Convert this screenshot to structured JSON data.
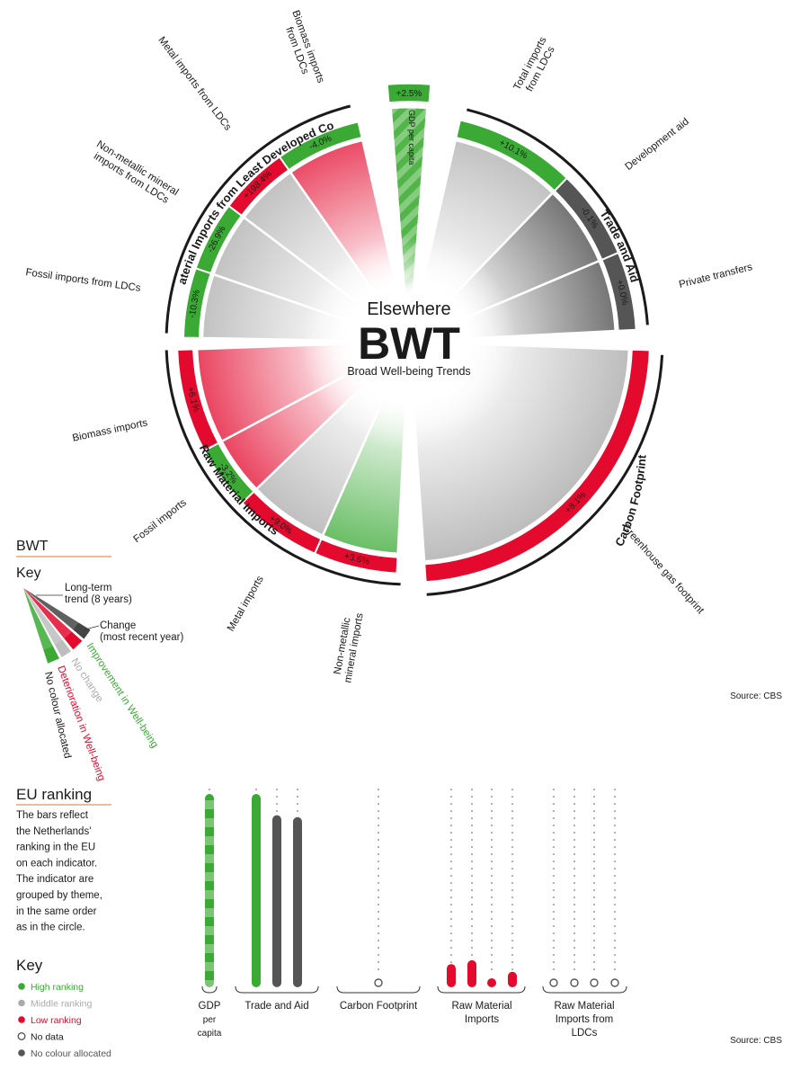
{
  "colors": {
    "green": "#3aaa35",
    "red": "#e30a2e",
    "grey": "#bdbdbd",
    "dark": "#555555"
  },
  "center": {
    "top": "Elsewhere",
    "big": "BWT",
    "sub": "Broad Well-being Trends"
  },
  "gdp": {
    "change": "+2.5%",
    "label": "GDP per capita"
  },
  "themes": {
    "trade": "Trade and Aid",
    "ldc": "Raw Material Imports from Least Developed Countries",
    "raw": "Raw Material Imports",
    "carbon": "Carbon Footprint"
  },
  "indicators": {
    "total_imports_ldc": {
      "label": "Total imports from LDCs",
      "change": "+10.1%"
    },
    "development_aid": {
      "label": "Development aid",
      "change": "-0.1%"
    },
    "private_transfers": {
      "label": "Private transfers",
      "change": "+0.0%"
    },
    "greenhouse": {
      "label": "Greenhouse gas footprint",
      "change": "+8.1%"
    },
    "nonmetallic": {
      "label": "Non-metallic mineral imports",
      "change": "+3.6%"
    },
    "metal": {
      "label": "Metal imports",
      "change": "+9.0%"
    },
    "fossil": {
      "label": "Fossil imports",
      "change": "-3.2%"
    },
    "biomass": {
      "label": "Biomass imports",
      "change": "+6.1%"
    },
    "fossil_ldc": {
      "label": "Fossil imports from LDCs",
      "change": "-10.3%"
    },
    "nonmetallic_ldc": {
      "label": "Non-metallic mineral imports from LDCs",
      "change": "-26.9%"
    },
    "metal_ldc": {
      "label": "Metal imports from LDCs",
      "change": "+198.4%"
    },
    "biomass_ldc": {
      "label": "Biomass imports from LDCs",
      "change": "-4.0%"
    }
  },
  "bwt_key": {
    "title": "BWT",
    "subtitle": "Key",
    "longterm": "Long-term trend (8 years)",
    "change": "Change (most recent year)",
    "improvement": "Improvement in Well-being",
    "nochange": "No change",
    "deterioration": "Deterioration in Well-being",
    "nocolour": "No colour allocated"
  },
  "source": "Source: CBS",
  "eu_ranking": {
    "title": "EU ranking",
    "description": "The bars reflect the Netherlands' ranking in the EU on each indicator. The indicator are grouped by theme, in the same order as in the circle.",
    "key_title": "Key",
    "key": [
      {
        "label": "High ranking",
        "color": "#3aaa35"
      },
      {
        "label": "Middle ranking",
        "color": "#aaaaaa"
      },
      {
        "label": "Low ranking",
        "color": "#e30a2e"
      },
      {
        "label": "No data",
        "color": "none"
      },
      {
        "label": "No colour allocated",
        "color": "#555555"
      }
    ]
  },
  "chart_data": [
    {
      "type": "radial-bar",
      "title": "Elsewhere BWT",
      "indicators": [
        {
          "theme": "GDP per capita",
          "name": "GDP per capita",
          "change": "+2.5%",
          "trend": "improvement"
        },
        {
          "theme": "Trade and Aid",
          "name": "Total imports from LDCs",
          "change": "+10.1%",
          "trend": "no change",
          "change_color": "improvement"
        },
        {
          "theme": "Trade and Aid",
          "name": "Development aid",
          "change": "-0.1%",
          "trend": "no colour allocated"
        },
        {
          "theme": "Trade and Aid",
          "name": "Private transfers",
          "change": "+0.0%",
          "trend": "no colour allocated"
        },
        {
          "theme": "Carbon Footprint",
          "name": "Greenhouse gas footprint",
          "change": "+8.1%",
          "trend": "no change",
          "change_color": "deterioration"
        },
        {
          "theme": "Raw Material Imports",
          "name": "Non-metallic mineral imports",
          "change": "+3.6%",
          "trend": "improvement",
          "change_color": "deterioration"
        },
        {
          "theme": "Raw Material Imports",
          "name": "Metal imports",
          "change": "+9.0%",
          "trend": "no change",
          "change_color": "deterioration"
        },
        {
          "theme": "Raw Material Imports",
          "name": "Fossil imports",
          "change": "-3.2%",
          "trend": "deterioration",
          "change_color": "improvement"
        },
        {
          "theme": "Raw Material Imports",
          "name": "Biomass imports",
          "change": "+6.1%",
          "trend": "deterioration",
          "change_color": "deterioration"
        },
        {
          "theme": "Raw Material Imports from LDCs",
          "name": "Fossil imports from LDCs",
          "change": "-10.3%",
          "trend": "no change",
          "change_color": "improvement"
        },
        {
          "theme": "Raw Material Imports from LDCs",
          "name": "Non-metallic mineral imports from LDCs",
          "change": "-26.9%",
          "trend": "no change",
          "change_color": "improvement"
        },
        {
          "theme": "Raw Material Imports from LDCs",
          "name": "Metal imports from LDCs",
          "change": "+198.4%",
          "trend": "no change",
          "change_color": "deterioration"
        },
        {
          "theme": "Raw Material Imports from LDCs",
          "name": "Biomass imports from LDCs",
          "change": "-4.0%",
          "trend": "deterioration",
          "change_color": "improvement"
        }
      ]
    },
    {
      "type": "bar",
      "title": "EU ranking",
      "groups": [
        {
          "name": "GDP per capita",
          "bars": [
            {
              "ranking": "high",
              "level": 1.0
            }
          ]
        },
        {
          "name": "Trade and Aid",
          "bars": [
            {
              "ranking": "high",
              "level": 1.0
            },
            {
              "ranking": "no colour allocated",
              "level": 0.89
            },
            {
              "ranking": "no colour allocated",
              "level": 0.88
            }
          ]
        },
        {
          "name": "Carbon Footprint",
          "bars": [
            {
              "ranking": "no data",
              "level": 0
            }
          ]
        },
        {
          "name": "Raw Material Imports",
          "bars": [
            {
              "ranking": "low",
              "level": 0.12
            },
            {
              "ranking": "low",
              "level": 0.14
            },
            {
              "ranking": "low",
              "level": 0.03
            },
            {
              "ranking": "low",
              "level": 0.08
            }
          ]
        },
        {
          "name": "Raw Material Imports from LDCs",
          "bars": [
            {
              "ranking": "no data",
              "level": 0
            },
            {
              "ranking": "no data",
              "level": 0
            },
            {
              "ranking": "no data",
              "level": 0
            },
            {
              "ranking": "no data",
              "level": 0
            }
          ]
        }
      ]
    }
  ]
}
